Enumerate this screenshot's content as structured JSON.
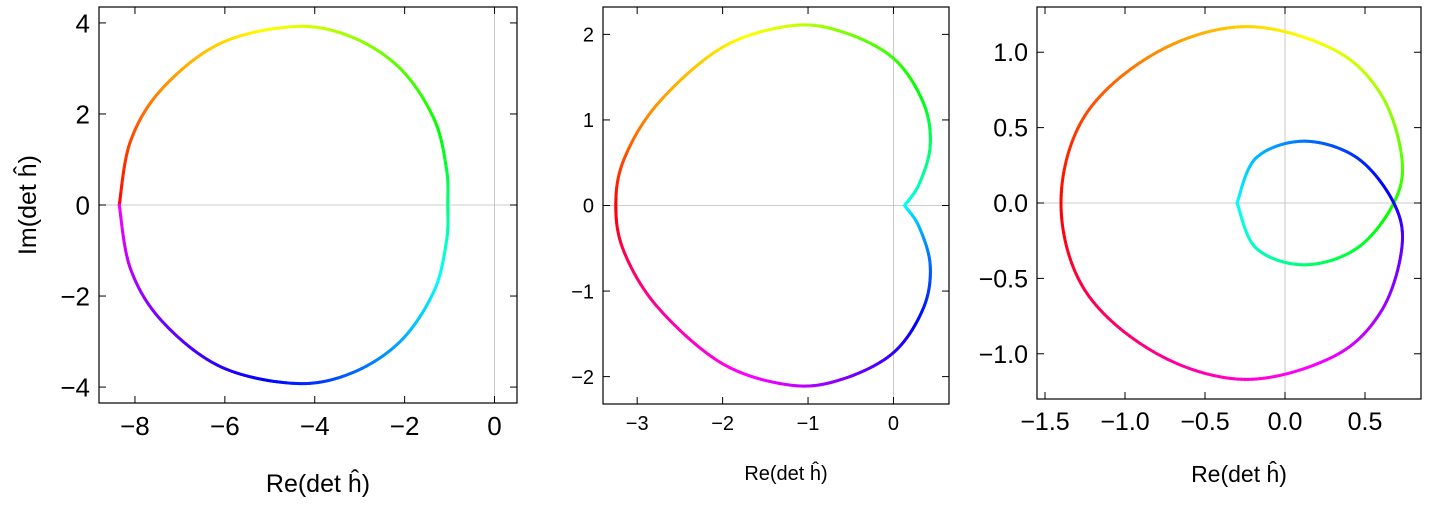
{
  "chart_data": [
    {
      "type": "line",
      "title": "",
      "xlabel": "Re(det ĥ)",
      "ylabel": "Im(det ĥ)",
      "xlim": [
        -8.8,
        0.5
      ],
      "ylim": [
        -4.35,
        4.35
      ],
      "xticks": [
        -8,
        -6,
        -4,
        -2,
        0
      ],
      "yticks": [
        -4,
        -2,
        0,
        2,
        4
      ],
      "xtick_labels": [
        "−8",
        "−6",
        "−4",
        "−2",
        "0"
      ],
      "ytick_labels": [
        "−4",
        "−2",
        "0",
        "2",
        "4"
      ],
      "grid": false,
      "coloring": "hue gradient along curve (red → yellow → green → cyan → blue → magenta → red)",
      "series": [
        {
          "points": [
            [
              -8.35,
              0
            ],
            [
              -8.1,
              1.4
            ],
            [
              -7.4,
              2.55
            ],
            [
              -6.1,
              3.55
            ],
            [
              -4.45,
              3.92
            ],
            [
              -3.2,
              3.7
            ],
            [
              -2.1,
              3.0
            ],
            [
              -1.35,
              1.9
            ],
            [
              -1.07,
              0.8
            ],
            [
              -1.04,
              0
            ],
            [
              -1.07,
              -0.8
            ],
            [
              -1.35,
              -1.9
            ],
            [
              -2.1,
              -3.0
            ],
            [
              -3.2,
              -3.7
            ],
            [
              -4.45,
              -3.92
            ],
            [
              -6.1,
              -3.55
            ],
            [
              -7.4,
              -2.55
            ],
            [
              -8.1,
              -1.4
            ],
            [
              -8.35,
              0
            ]
          ]
        }
      ]
    },
    {
      "type": "line",
      "title": "",
      "xlabel": "Re(det ĥ)",
      "ylabel": "",
      "xlim": [
        -3.4,
        0.65
      ],
      "ylim": [
        -2.32,
        2.32
      ],
      "xticks": [
        -3,
        -2,
        -1,
        0
      ],
      "yticks": [
        -2,
        -1,
        0,
        1,
        2
      ],
      "xtick_labels": [
        "−3",
        "−2",
        "−1",
        "0"
      ],
      "ytick_labels": [
        "−2",
        "−1",
        "0",
        "1",
        "2"
      ],
      "grid": false,
      "coloring": "hue gradient along curve (cyan → green → yellow → red → magenta → blue → cyan)",
      "series": [
        {
          "points": [
            [
              0.13,
              0
            ],
            [
              0.3,
              0.25
            ],
            [
              0.43,
              0.7
            ],
            [
              0.35,
              1.2
            ],
            [
              0.0,
              1.72
            ],
            [
              -0.6,
              2.03
            ],
            [
              -1.2,
              2.1
            ],
            [
              -2.0,
              1.85
            ],
            [
              -2.75,
              1.2
            ],
            [
              -3.15,
              0.55
            ],
            [
              -3.25,
              0
            ],
            [
              -3.15,
              -0.55
            ],
            [
              -2.75,
              -1.2
            ],
            [
              -2.0,
              -1.85
            ],
            [
              -1.2,
              -2.1
            ],
            [
              -0.6,
              -2.03
            ],
            [
              0.0,
              -1.72
            ],
            [
              0.35,
              -1.2
            ],
            [
              0.43,
              -0.7
            ],
            [
              0.3,
              -0.25
            ],
            [
              0.13,
              0
            ]
          ]
        }
      ]
    },
    {
      "type": "line",
      "title": "",
      "xlabel": "Re(det ĥ)",
      "ylabel": "",
      "xlim": [
        -1.55,
        0.85
      ],
      "ylim": [
        -1.3,
        1.3
      ],
      "xticks": [
        -1.5,
        -1.0,
        -0.5,
        0.0,
        0.5
      ],
      "yticks": [
        -1.0,
        -0.5,
        0.0,
        0.5,
        1.0
      ],
      "xtick_labels": [
        "−1.5",
        "−1.0",
        "−0.5",
        "0.0",
        "0.5"
      ],
      "ytick_labels": [
        "−1.0",
        "−0.5",
        "0.0",
        "0.5",
        "1.0"
      ],
      "grid": false,
      "coloring": "hue gradient along curve (cyan → green → yellow → red → magenta → blue → cyan)",
      "series": [
        {
          "points": [
            [
              -0.3,
              0
            ],
            [
              -0.18,
              -0.3
            ],
            [
              0.12,
              -0.41
            ],
            [
              0.45,
              -0.3
            ],
            [
              0.68,
              0
            ],
            [
              0.73,
              0.3
            ],
            [
              0.6,
              0.72
            ],
            [
              0.3,
              1.02
            ],
            [
              -0.25,
              1.17
            ],
            [
              -0.8,
              1.0
            ],
            [
              -1.25,
              0.58
            ],
            [
              -1.4,
              0
            ],
            [
              -1.25,
              -0.58
            ],
            [
              -0.8,
              -1.0
            ],
            [
              -0.25,
              -1.17
            ],
            [
              0.3,
              -1.02
            ],
            [
              0.6,
              -0.72
            ],
            [
              0.73,
              -0.3
            ],
            [
              0.68,
              0
            ],
            [
              0.45,
              0.3
            ],
            [
              0.12,
              0.41
            ],
            [
              -0.18,
              0.3
            ],
            [
              -0.3,
              0
            ]
          ]
        }
      ]
    }
  ]
}
